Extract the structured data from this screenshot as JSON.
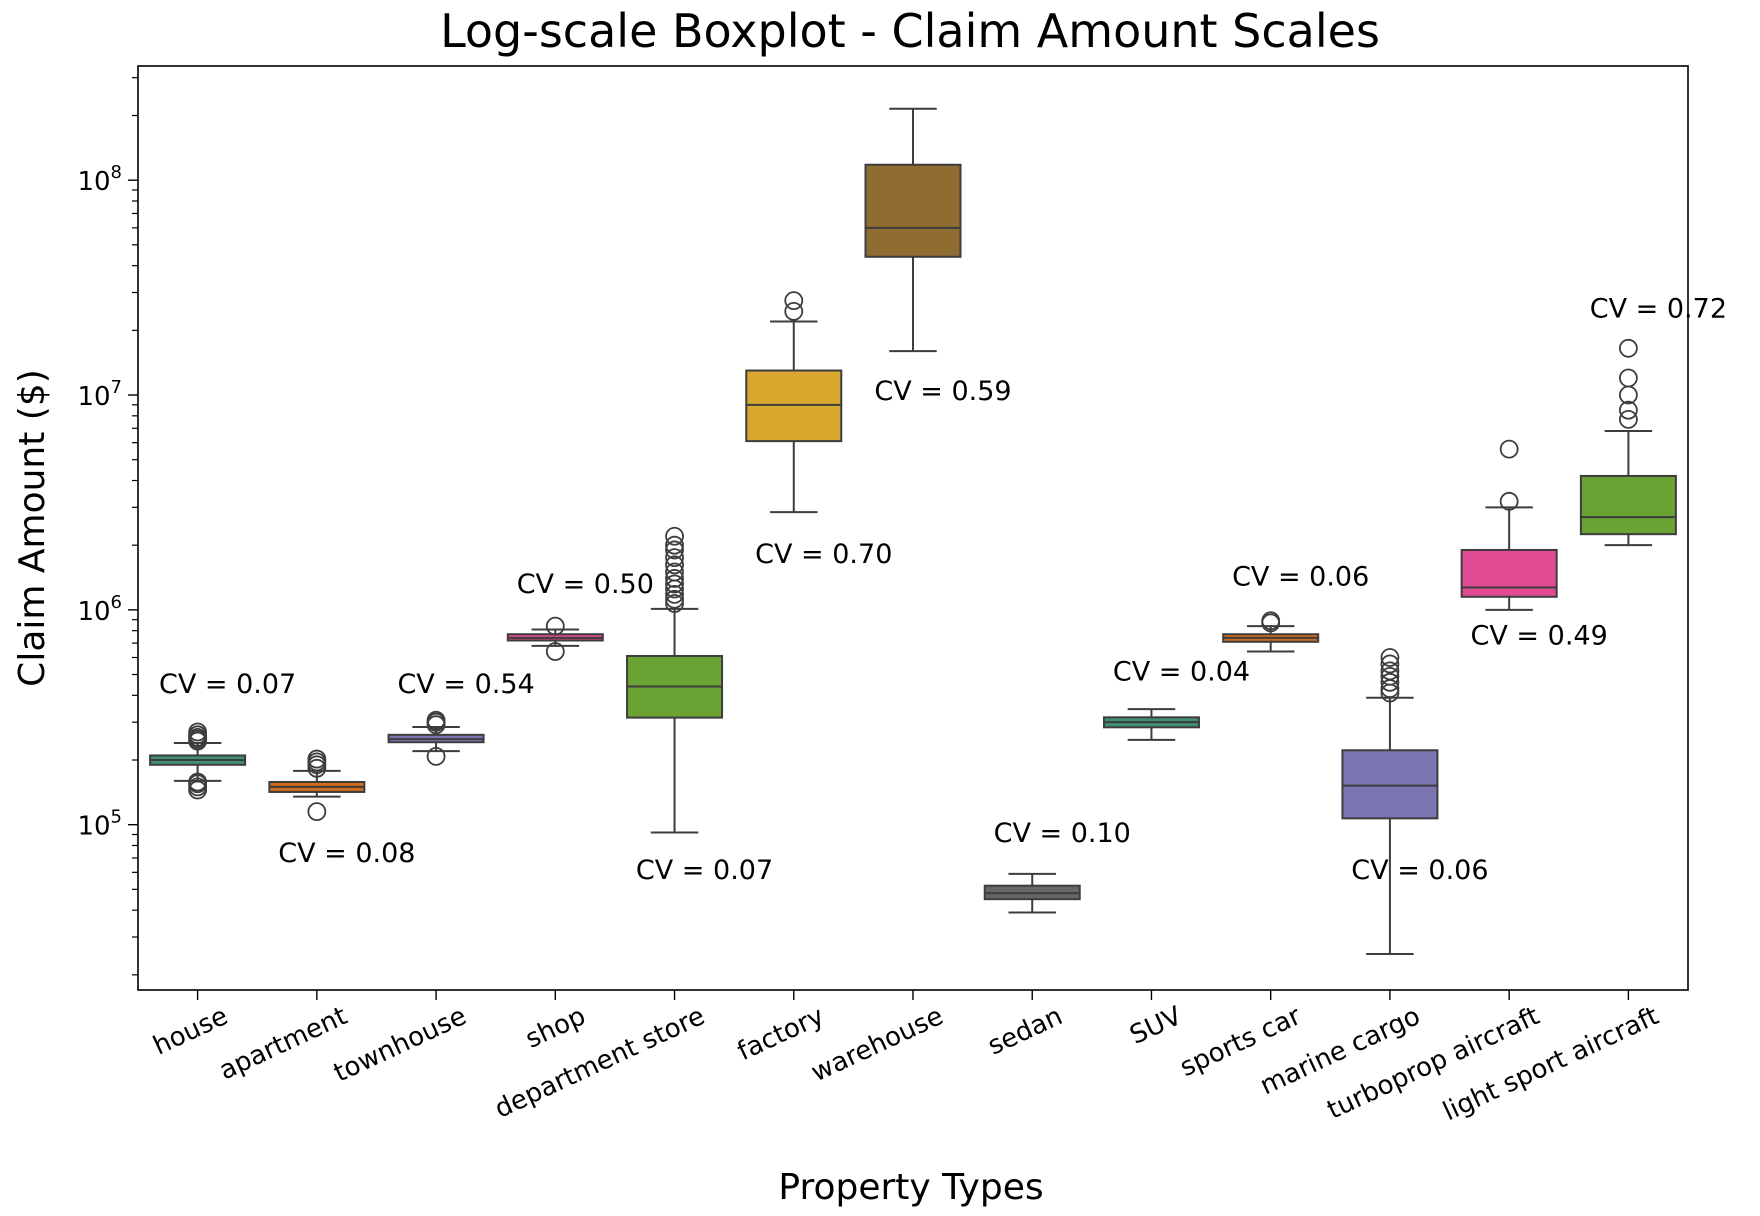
{
  "chart_data": {
    "type": "boxplot",
    "title": "Log-scale Boxplot - Claim Amount Scales",
    "xlabel": "Property Types",
    "ylabel": "Claim Amount ($)",
    "yscale": "log",
    "ylim": [
      17000,
      340000000
    ],
    "yticks": [
      {
        "value": 100000,
        "base": "10",
        "exp": "5"
      },
      {
        "value": 1000000,
        "base": "10",
        "exp": "6"
      },
      {
        "value": 10000000,
        "base": "10",
        "exp": "7"
      },
      {
        "value": 100000000,
        "base": "10",
        "exp": "8"
      }
    ],
    "grid": false,
    "categories": [
      "house",
      "apartment",
      "townhouse",
      "shop",
      "department store",
      "factory",
      "warehouse",
      "sedan",
      "SUV",
      "sports car",
      "marine cargo",
      "turboprop aircraft",
      "light sport aircraft"
    ],
    "boxes": [
      {
        "category": "house",
        "color": "#3f8f79",
        "whisker_low": 160000,
        "q1": 190000,
        "median": 200000,
        "q3": 210000,
        "whisker_high": 240000,
        "outliers": [
          145000,
          150000,
          155000,
          158000,
          245000,
          250000,
          255000,
          262000,
          270000
        ],
        "cv_label": "CV = 0.07",
        "cv_y": 410000
      },
      {
        "category": "apartment",
        "color": "#d06b1f",
        "whisker_low": 135000,
        "q1": 142000,
        "median": 150000,
        "q3": 158000,
        "whisker_high": 178000,
        "outliers": [
          115000,
          183000,
          190000,
          196000,
          202000
        ],
        "cv_label": "CV = 0.08",
        "cv_y": 67000
      },
      {
        "category": "townhouse",
        "color": "#7b74b3",
        "whisker_low": 220000,
        "q1": 242000,
        "median": 250000,
        "q3": 262000,
        "whisker_high": 285000,
        "outliers": [
          208000,
          292000,
          300000,
          306000
        ],
        "cv_label": "CV = 0.54",
        "cv_y": 410000
      },
      {
        "category": "shop",
        "color": "#e04b93",
        "whisker_low": 680000,
        "q1": 720000,
        "median": 740000,
        "q3": 770000,
        "whisker_high": 810000,
        "outliers": [
          640000,
          840000
        ],
        "cv_label": "CV = 0.50",
        "cv_y": 1200000
      },
      {
        "category": "department store",
        "color": "#6aa233",
        "whisker_low": 92000,
        "q1": 315000,
        "median": 440000,
        "q3": 610000,
        "whisker_high": 1010000,
        "outliers": [
          1070000,
          1120000,
          1180000,
          1250000,
          1320000,
          1400000,
          1500000,
          1620000,
          1750000,
          1900000,
          2000000,
          2200000
        ],
        "cv_label": "CV = 0.07",
        "cv_y": 56000
      },
      {
        "category": "factory",
        "color": "#d8a72d",
        "whisker_low": 2850000,
        "q1": 6100000,
        "median": 9000000,
        "q3": 13000000,
        "whisker_high": 22000000,
        "outliers": [
          24500000,
          27500000
        ],
        "cv_label": "CV = 0.70",
        "cv_y": 1650000
      },
      {
        "category": "warehouse",
        "color": "#8f6d32",
        "whisker_low": 16000000,
        "q1": 44000000,
        "median": 60000000,
        "q3": 118000000,
        "whisker_high": 215000000,
        "outliers": [],
        "cv_label": "CV = 0.59",
        "cv_y": 9500000
      },
      {
        "category": "sedan",
        "color": "#666666",
        "whisker_low": 39000,
        "q1": 45000,
        "median": 48000,
        "q3": 52000,
        "whisker_high": 59000,
        "outliers": [],
        "cv_label": "CV = 0.10",
        "cv_y": 83000
      },
      {
        "category": "SUV",
        "color": "#3f8f79",
        "whisker_low": 248000,
        "q1": 284000,
        "median": 300000,
        "q3": 316000,
        "whisker_high": 345000,
        "outliers": [],
        "cv_label": "CV = 0.04",
        "cv_y": 470000
      },
      {
        "category": "sports car",
        "color": "#d06b1f",
        "whisker_low": 640000,
        "q1": 710000,
        "median": 740000,
        "q3": 770000,
        "whisker_high": 840000,
        "outliers": [
          870000,
          890000
        ],
        "cv_label": "CV = 0.06",
        "cv_y": 1300000
      },
      {
        "category": "marine cargo",
        "color": "#7b74b3",
        "whisker_low": 25000,
        "q1": 107000,
        "median": 152000,
        "q3": 222000,
        "whisker_high": 390000,
        "outliers": [
          410000,
          430000,
          460000,
          490000,
          520000,
          560000,
          600000
        ],
        "cv_label": "CV = 0.06",
        "cv_y": 56000
      },
      {
        "category": "turboprop aircraft",
        "color": "#e04b93",
        "whisker_low": 1000000,
        "q1": 1150000,
        "median": 1270000,
        "q3": 1900000,
        "whisker_high": 3000000,
        "outliers": [
          3200000,
          5600000
        ],
        "cv_label": "CV = 0.49",
        "cv_y": 690000
      },
      {
        "category": "light sport aircraft",
        "color": "#6aa233",
        "whisker_low": 2000000,
        "q1": 2250000,
        "median": 2700000,
        "q3": 4200000,
        "whisker_high": 6800000,
        "outliers": [
          7700000,
          8500000,
          10000000,
          12000000,
          16500000
        ],
        "cv_label": "CV = 0.72",
        "cv_y": 23000000
      }
    ]
  }
}
